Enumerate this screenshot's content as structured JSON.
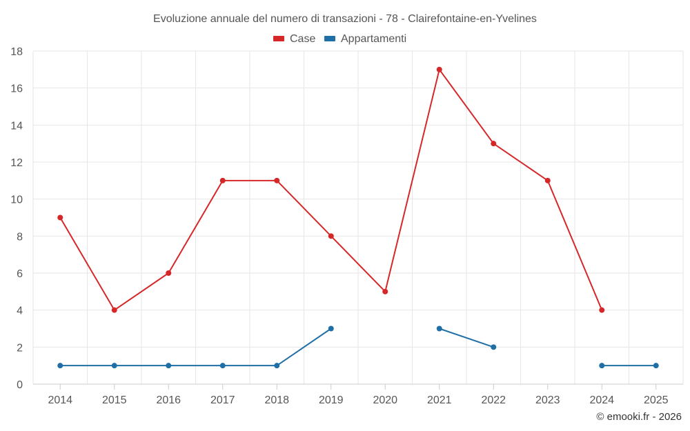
{
  "chart_data": {
    "type": "line",
    "title": "Evoluzione annuale del numero di transazioni - 78 - Clairefontaine-en-Yvelines",
    "categories": [
      "2014",
      "2015",
      "2016",
      "2017",
      "2018",
      "2019",
      "2020",
      "2021",
      "2022",
      "2023",
      "2024",
      "2025"
    ],
    "series": [
      {
        "name": "Case",
        "color": "#d62728",
        "values": [
          9,
          4,
          6,
          11,
          11,
          8,
          5,
          17,
          13,
          11,
          4,
          null
        ]
      },
      {
        "name": "Appartamenti",
        "color": "#1f6fa6",
        "values": [
          1,
          1,
          1,
          1,
          1,
          3,
          null,
          3,
          2,
          null,
          1,
          1
        ]
      }
    ],
    "ylim": [
      0,
      18
    ],
    "yticks": [
      0,
      2,
      4,
      6,
      8,
      10,
      12,
      14,
      16,
      18
    ],
    "xlabel": "",
    "ylabel": "",
    "grid": true,
    "legend_position": "top-center"
  },
  "credit": "© emooki.fr - 2026"
}
